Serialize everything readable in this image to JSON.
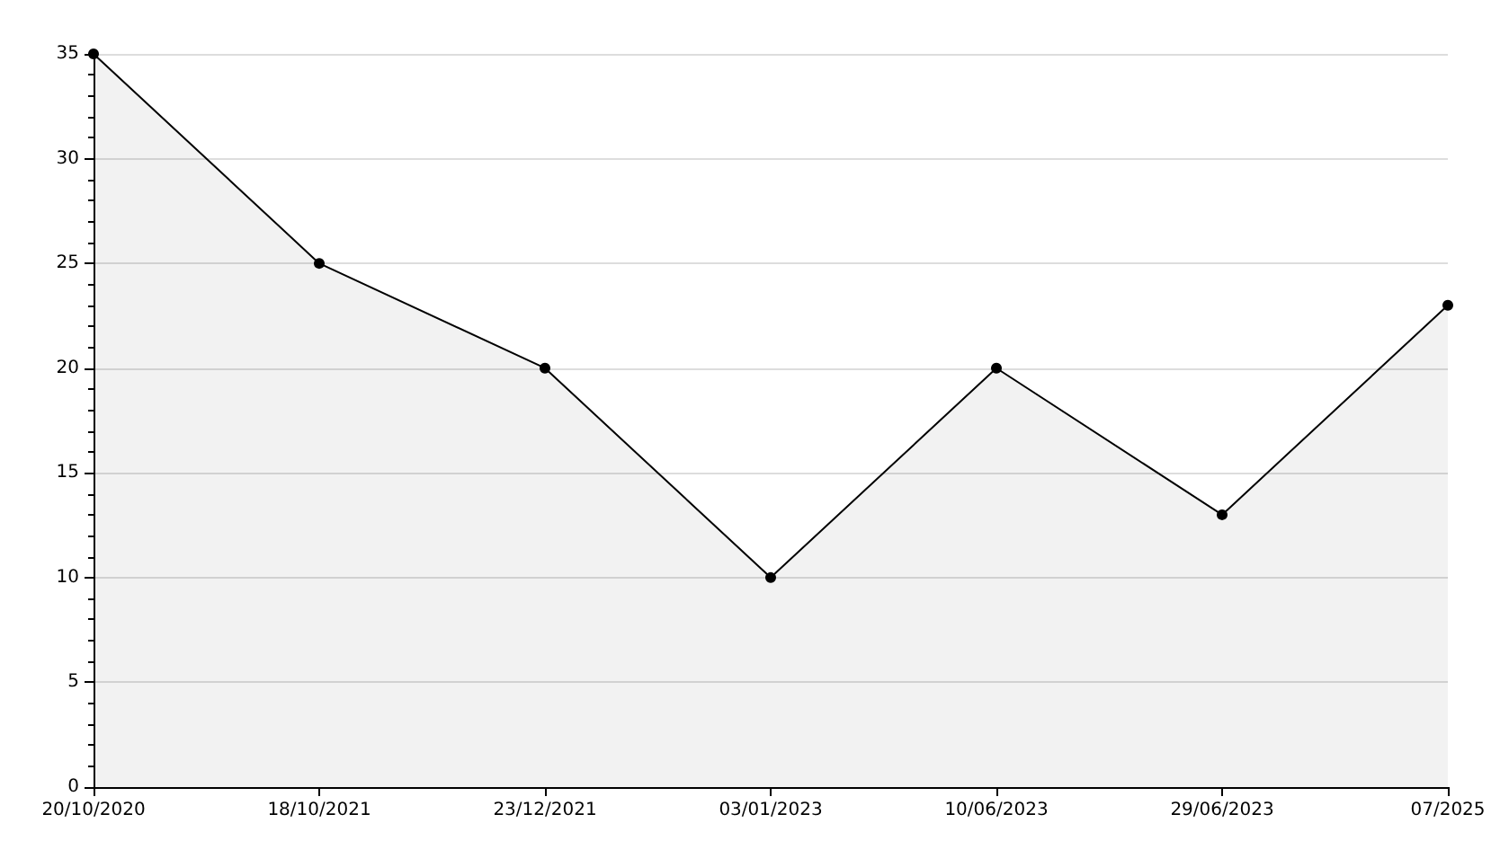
{
  "chart_data": {
    "type": "area",
    "categories": [
      "20/10/2020",
      "18/10/2021",
      "23/12/2021",
      "03/01/2023",
      "10/06/2023",
      "29/06/2023",
      "07/2025"
    ],
    "series": [
      {
        "color": "#000000",
        "values": [
          35,
          25,
          20,
          10,
          20,
          13,
          23
        ]
      }
    ],
    "ylim": [
      0,
      35
    ],
    "yticks": [
      0,
      5,
      10,
      15,
      20,
      25,
      30,
      35
    ],
    "grid": "y",
    "marker": "circle",
    "line_style": "solid"
  }
}
